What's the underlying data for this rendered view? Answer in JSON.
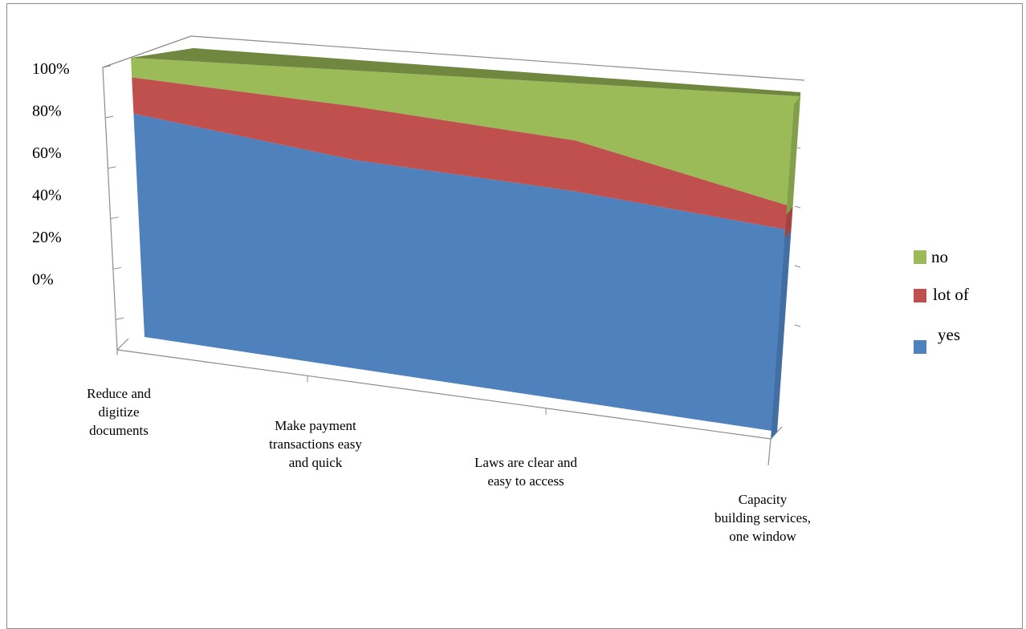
{
  "chart_data": {
    "type": "area",
    "stacked": "percent",
    "three_d": true,
    "categories": [
      [
        "Reduce and",
        "digitize",
        "documents"
      ],
      [
        "Make payment",
        "transactions easy",
        "and quick"
      ],
      [
        "Laws are clear and",
        "easy to access"
      ],
      [
        "Capacity",
        "building services,",
        "one window"
      ]
    ],
    "y_ticks": [
      "100%",
      "80%",
      "60%",
      "40%",
      "20%",
      "0%"
    ],
    "ylim": [
      0,
      100
    ],
    "series": [
      {
        "name": "yes",
        "color": "#4f81bd",
        "values": [
          80,
          70,
          66,
          60
        ]
      },
      {
        "name": "lot of",
        "color": "#c0504d",
        "values": [
          13,
          18,
          16,
          7
        ]
      },
      {
        "name": "no",
        "color": "#9bbb59",
        "values": [
          7,
          12,
          18,
          33
        ]
      }
    ],
    "legend": {
      "position": "right",
      "order": [
        "no",
        "lot of",
        "yes"
      ]
    },
    "grid": false
  }
}
